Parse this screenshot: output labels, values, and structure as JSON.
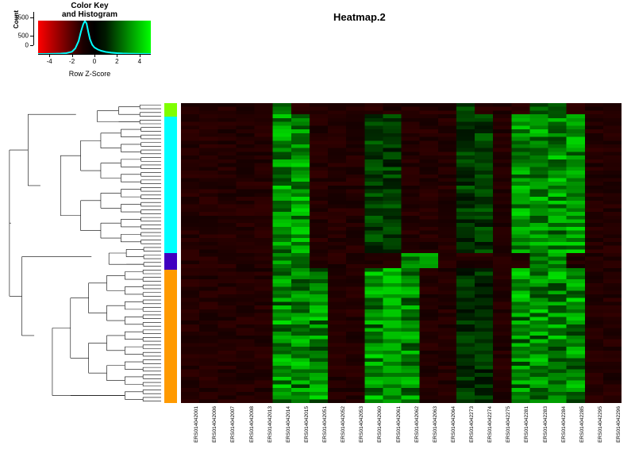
{
  "title": "Heatmap.2",
  "colorkey": {
    "title_line1": "Color Key",
    "title_line2": "and Histogram",
    "xlabel": "Row Z-Score",
    "ylabel": "Count",
    "xticks": [
      -4,
      -2,
      0,
      2,
      4
    ],
    "yticks": [
      0,
      500,
      1500
    ],
    "xlim": [
      -5,
      5
    ],
    "ylim": [
      0,
      1800
    ],
    "histogram_line_color": "#00ffff",
    "gradient_stops": [
      "#ff0000",
      "#000000",
      "#00ff00"
    ],
    "hist_points": [
      [
        -5,
        0
      ],
      [
        -4.5,
        2
      ],
      [
        -4,
        5
      ],
      [
        -3.5,
        10
      ],
      [
        -3,
        20
      ],
      [
        -2.5,
        45
      ],
      [
        -2,
        120
      ],
      [
        -1.7,
        300
      ],
      [
        -1.4,
        700
      ],
      [
        -1.2,
        1200
      ],
      [
        -1.0,
        1600
      ],
      [
        -0.85,
        1780
      ],
      [
        -0.7,
        1650
      ],
      [
        -0.55,
        1200
      ],
      [
        -0.4,
        800
      ],
      [
        -0.2,
        500
      ],
      [
        0,
        350
      ],
      [
        0.3,
        240
      ],
      [
        0.6,
        170
      ],
      [
        1,
        110
      ],
      [
        1.5,
        70
      ],
      [
        2,
        45
      ],
      [
        2.5,
        28
      ],
      [
        3,
        18
      ],
      [
        3.5,
        10
      ],
      [
        4,
        6
      ],
      [
        4.5,
        3
      ],
      [
        5,
        0
      ]
    ],
    "title_fontsize": 10,
    "tick_fontsize": 8,
    "label_fontsize": 9
  },
  "dendrogram": {
    "leaf_count": 80,
    "clusters": [
      {
        "range": [
          0,
          6
        ],
        "depth": 0.55
      },
      {
        "range": [
          6,
          38
        ],
        "depth": 0.78
      },
      {
        "range": [
          38,
          44
        ],
        "depth": 0.45
      },
      {
        "range": [
          44,
          80
        ],
        "depth": 0.82
      }
    ],
    "root_merge_depth": 0.97,
    "stroke_color": "#000000",
    "stroke_width": 0.6
  },
  "row_sidebar": {
    "segments": [
      {
        "color": "#7fff00",
        "fraction": 0.045
      },
      {
        "color": "#00ffff",
        "fraction": 0.455
      },
      {
        "color": "#4000c0",
        "fraction": 0.055
      },
      {
        "color": "#ff9a00",
        "fraction": 0.445
      }
    ]
  },
  "heatmap": {
    "type": "heatmap",
    "n_cols": 24,
    "n_rows": 80,
    "background_value": -0.7,
    "column_labels": [
      "ERS014042001",
      "ERS014042006",
      "ERS014042007",
      "ERS014042008",
      "ERS014042013",
      "ERS014042014",
      "ERS014042015",
      "ERS014042051",
      "ERS014042052",
      "ERS014042053",
      "ERS014042060",
      "ERS014042061",
      "ERS014042062",
      "ERS014042063",
      "ERS014042064",
      "ERS014042273",
      "ERS014042274",
      "ERS014042275",
      "ERS014042281",
      "ERS014042283",
      "ERS014042284",
      "ERS014042285",
      "ERS014042295",
      "ERS014042296"
    ],
    "column_label_fontsize": 6.5,
    "bright_columns": {
      "top_cyan": [
        5,
        6,
        18,
        19,
        20,
        21
      ],
      "top_cyan_secondary": [
        10,
        11,
        15,
        16
      ],
      "bottom_orange": [
        5,
        6,
        7,
        10,
        11,
        12,
        18,
        19,
        20,
        21
      ]
    },
    "row_groups": {
      "g1": [
        0,
        3
      ],
      "cyan": [
        3,
        40
      ],
      "purple": [
        40,
        44
      ],
      "orange": [
        44,
        80
      ]
    },
    "colormap": {
      "low": "#ff0000",
      "zero": "#000000",
      "high": "#00ff00"
    },
    "zlim": [
      -5,
      5
    ]
  },
  "colors": {
    "page_bg": "#ffffff",
    "axis": "#000000"
  }
}
